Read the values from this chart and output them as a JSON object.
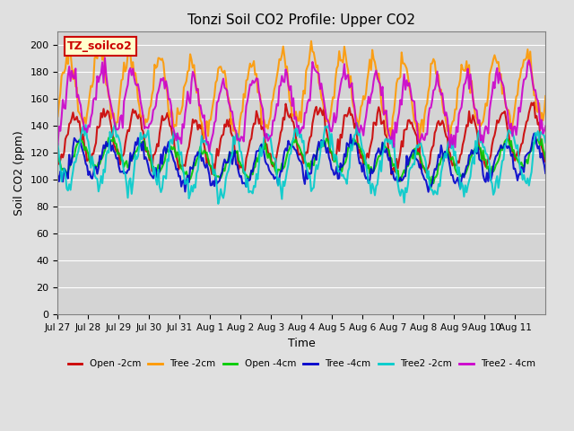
{
  "title": "Tonzi Soil CO2 Profile: Upper CO2",
  "ylabel": "Soil CO2 (ppm)",
  "xlabel": "Time",
  "legend_label": "TZ_soilco2",
  "ylim": [
    0,
    210
  ],
  "yticks": [
    0,
    20,
    40,
    60,
    80,
    100,
    120,
    140,
    160,
    180,
    200
  ],
  "background_color": "#e8e8e8",
  "plot_bg_color": "#d8d8d8",
  "series": [
    {
      "label": "Open -2cm",
      "color": "#cc0000",
      "lw": 1.5
    },
    {
      "label": "Tree -2cm",
      "color": "#ff9900",
      "lw": 1.5
    },
    {
      "label": "Open -4cm",
      "color": "#00cc00",
      "lw": 1.5
    },
    {
      "label": "Tree -4cm",
      "color": "#0000cc",
      "lw": 1.5
    },
    {
      "label": "Tree2 -2cm",
      "color": "#00cccc",
      "lw": 1.5
    },
    {
      "label": "Tree2 - 4cm",
      "color": "#cc00cc",
      "lw": 1.5
    }
  ],
  "n_days": 15,
  "seed": 42,
  "date_start": "Jul 27",
  "xtick_labels": [
    "Jul 27",
    "Jul 28",
    "Jul 29",
    "Jul 30",
    "Jul 31",
    "Aug 1",
    "Aug 2",
    "Aug 3",
    "Aug 4",
    "Aug 5",
    "Aug 6",
    "Aug 7",
    "Aug 8",
    "Aug 9",
    "Aug 10",
    "Aug 11"
  ]
}
